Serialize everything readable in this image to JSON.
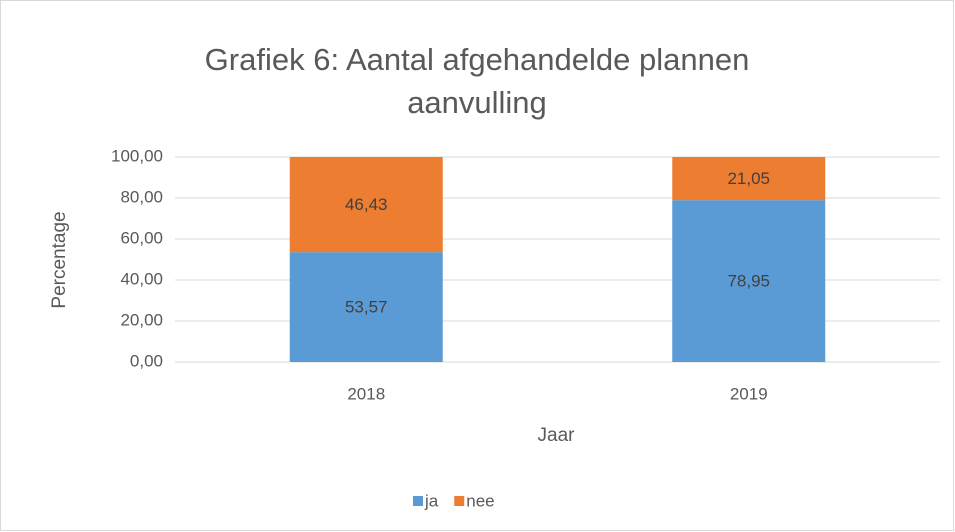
{
  "chart_data": {
    "type": "stacked_bar",
    "title": [
      "Grafiek 6: Aantal afgehandelde plannen",
      "aanvulling"
    ],
    "x_label": "Jaar",
    "y_label": "Percentage",
    "categories": [
      "2018",
      "2019"
    ],
    "series": [
      {
        "name": "ja",
        "color": "#5b9bd5",
        "values": [
          53.57,
          78.95
        ],
        "value_labels": [
          "53,57",
          "78,95"
        ]
      },
      {
        "name": "nee",
        "color": "#ed7d31",
        "values": [
          46.43,
          21.05
        ],
        "value_labels": [
          "46,43",
          "21,05"
        ]
      }
    ],
    "ylim": [
      0,
      100
    ],
    "yticks": [
      {
        "value": 0,
        "label": "0,00"
      },
      {
        "value": 20,
        "label": "20,00"
      },
      {
        "value": 40,
        "label": "40,00"
      },
      {
        "value": 60,
        "label": "60,00"
      },
      {
        "value": 80,
        "label": "80,00"
      },
      {
        "value": 100,
        "label": "100,00"
      }
    ],
    "grid": true,
    "legend": "bottom"
  }
}
